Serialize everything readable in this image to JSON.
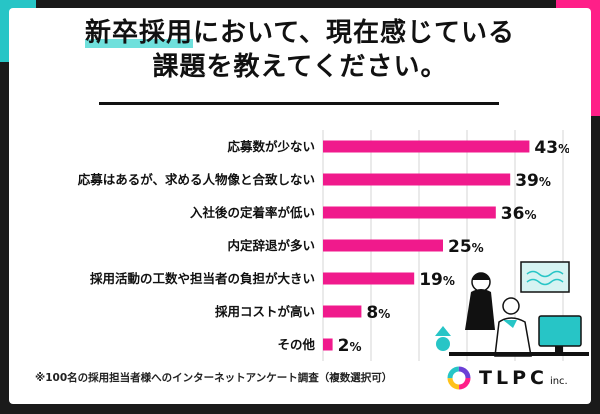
{
  "title": {
    "highlight": "新卒採用",
    "line1_rest": "において、現在感じている",
    "line2": "課題を教えてください。"
  },
  "chart_data": {
    "type": "bar",
    "orientation": "horizontal",
    "categories": [
      "応募数が少ない",
      "応募はあるが、求める人物像と合致しない",
      "入社後の定着率が低い",
      "内定辞退が多い",
      "採用活動の工数や担当者の負担が大きい",
      "採用コストが高い",
      "その他"
    ],
    "values": [
      43,
      39,
      36,
      25,
      19,
      8,
      2
    ],
    "value_unit": "%",
    "xlim": [
      0,
      50
    ],
    "grid": true,
    "bar_color": "#f01a8c"
  },
  "footnote": "※100名の採用担当者様へのインターネットアンケート調査（複数選択可）",
  "logo": {
    "name": "TLPC",
    "suffix": "inc."
  },
  "colors": {
    "accent_pink": "#f01a8c",
    "accent_teal": "#27c5c6",
    "background": "#1a1a1a"
  }
}
